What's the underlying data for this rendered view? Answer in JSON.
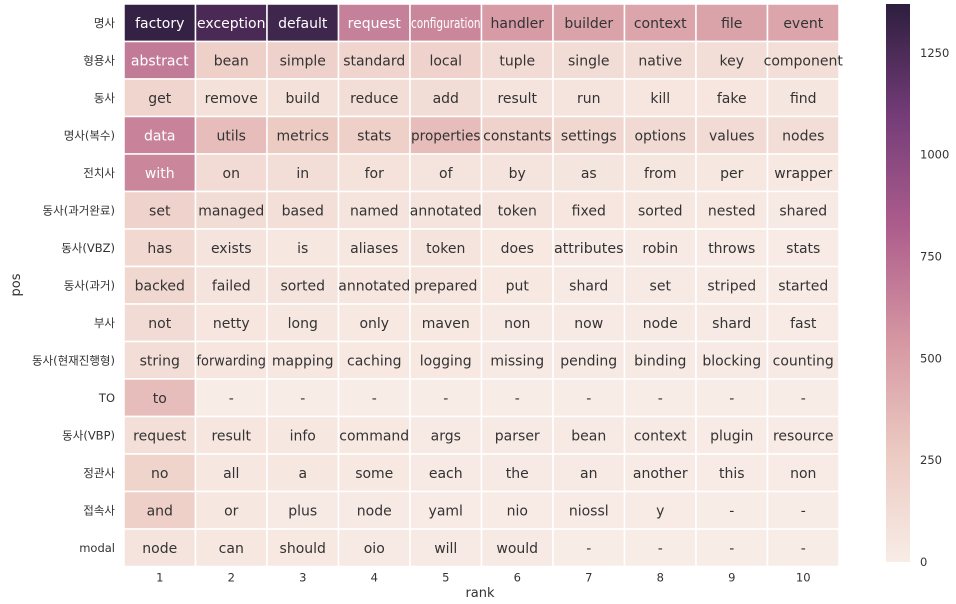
{
  "chart_data": {
    "type": "heatmap",
    "title": "",
    "xlabel": "rank",
    "ylabel": "pos",
    "x": [
      "1",
      "2",
      "3",
      "4",
      "5",
      "6",
      "7",
      "8",
      "9",
      "10"
    ],
    "y": [
      "명사",
      "형용사",
      "동사",
      "명사(복수)",
      "전치사",
      "동사(과거완료)",
      "동사(VBZ)",
      "동사(과거)",
      "부사",
      "동사(현재진행형)",
      "TO",
      "동사(VBP)",
      "정관사",
      "접속사",
      "modal"
    ],
    "words": [
      [
        "factory",
        "exception",
        "default",
        "request",
        "configuration",
        "handler",
        "builder",
        "context",
        "file",
        "event"
      ],
      [
        "abstract",
        "bean",
        "simple",
        "standard",
        "local",
        "tuple",
        "single",
        "native",
        "key",
        "component"
      ],
      [
        "get",
        "remove",
        "build",
        "reduce",
        "add",
        "result",
        "run",
        "kill",
        "fake",
        "find"
      ],
      [
        "data",
        "utils",
        "metrics",
        "stats",
        "properties",
        "constants",
        "settings",
        "options",
        "values",
        "nodes"
      ],
      [
        "with",
        "on",
        "in",
        "for",
        "of",
        "by",
        "as",
        "from",
        "per",
        "wrapper"
      ],
      [
        "set",
        "managed",
        "based",
        "named",
        "annotated",
        "token",
        "fixed",
        "sorted",
        "nested",
        "shared"
      ],
      [
        "has",
        "exists",
        "is",
        "aliases",
        "token",
        "does",
        "attributes",
        "robin",
        "throws",
        "stats"
      ],
      [
        "backed",
        "failed",
        "sorted",
        "annotated",
        "prepared",
        "put",
        "shard",
        "set",
        "striped",
        "started"
      ],
      [
        "not",
        "netty",
        "long",
        "only",
        "maven",
        "non",
        "now",
        "node",
        "shard",
        "fast"
      ],
      [
        "string",
        "forwarding",
        "mapping",
        "caching",
        "logging",
        "missing",
        "pending",
        "binding",
        "blocking",
        "counting"
      ],
      [
        "to",
        "-",
        "-",
        "-",
        "-",
        "-",
        "-",
        "-",
        "-",
        "-"
      ],
      [
        "request",
        "result",
        "info",
        "command",
        "args",
        "parser",
        "bean",
        "context",
        "plugin",
        "resource"
      ],
      [
        "no",
        "all",
        "a",
        "some",
        "each",
        "the",
        "an",
        "another",
        "this",
        "non"
      ],
      [
        "and",
        "or",
        "plus",
        "node",
        "yaml",
        "nio",
        "niossl",
        "y",
        "-",
        "-"
      ],
      [
        "node",
        "can",
        "should",
        "oio",
        "will",
        "would",
        "-",
        "-",
        "-",
        "-"
      ]
    ],
    "values": [
      [
        1340,
        1260,
        1300,
        650,
        620,
        520,
        480,
        470,
        480,
        470
      ],
      [
        680,
        220,
        210,
        180,
        200,
        130,
        120,
        110,
        110,
        100
      ],
      [
        180,
        90,
        90,
        110,
        120,
        70,
        60,
        50,
        50,
        45
      ],
      [
        640,
        340,
        260,
        220,
        340,
        200,
        160,
        140,
        130,
        110
      ],
      [
        620,
        130,
        110,
        80,
        70,
        60,
        55,
        45,
        40,
        30
      ],
      [
        200,
        120,
        100,
        70,
        60,
        70,
        50,
        40,
        30,
        20
      ],
      [
        150,
        60,
        40,
        40,
        60,
        30,
        20,
        15,
        10,
        10
      ],
      [
        160,
        70,
        60,
        50,
        50,
        30,
        20,
        20,
        10,
        10
      ],
      [
        130,
        50,
        40,
        30,
        30,
        20,
        20,
        20,
        15,
        10
      ],
      [
        110,
        50,
        40,
        30,
        30,
        20,
        20,
        20,
        15,
        15
      ],
      [
        340,
        0,
        0,
        0,
        0,
        0,
        0,
        0,
        0,
        0
      ],
      [
        100,
        50,
        40,
        30,
        20,
        20,
        20,
        15,
        10,
        10
      ],
      [
        190,
        40,
        40,
        30,
        20,
        20,
        15,
        10,
        10,
        10
      ],
      [
        220,
        40,
        20,
        20,
        10,
        10,
        10,
        5,
        0,
        0
      ],
      [
        70,
        40,
        30,
        20,
        20,
        15,
        0,
        0,
        0,
        0
      ]
    ],
    "colorbar": {
      "min": 0,
      "max": 1370,
      "ticks": [
        0,
        250,
        500,
        750,
        1000,
        1250
      ],
      "colors": [
        "#f8ece6",
        "#ebc9c1",
        "#d596a2",
        "#ad5d8c",
        "#743c78",
        "#2d1e3e"
      ]
    }
  }
}
